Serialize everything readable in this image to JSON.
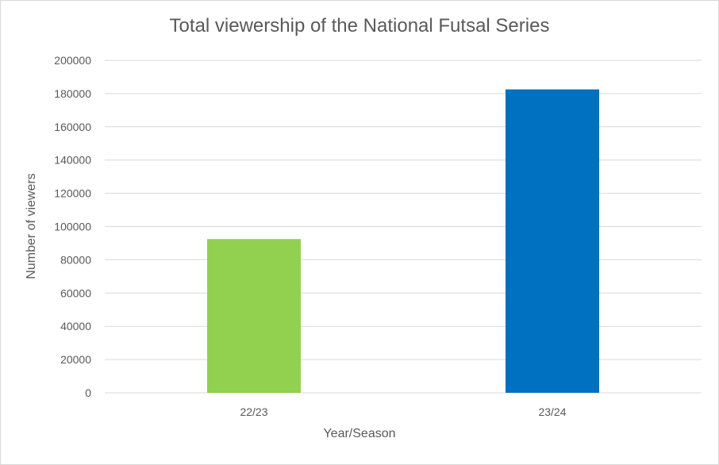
{
  "chart_data": {
    "type": "bar",
    "title": "Total viewership of the National Futsal Series",
    "xlabel": "Year/Season",
    "ylabel": "Number of viewers",
    "categories": [
      "22/23",
      "23/24"
    ],
    "values": [
      92500,
      182500
    ],
    "bar_colors": [
      "#92d050",
      "#0070c0"
    ],
    "ylim": [
      0,
      200000
    ],
    "yticks": [
      0,
      20000,
      40000,
      60000,
      80000,
      100000,
      120000,
      140000,
      160000,
      180000,
      200000
    ],
    "grid": true,
    "legend": "none"
  }
}
